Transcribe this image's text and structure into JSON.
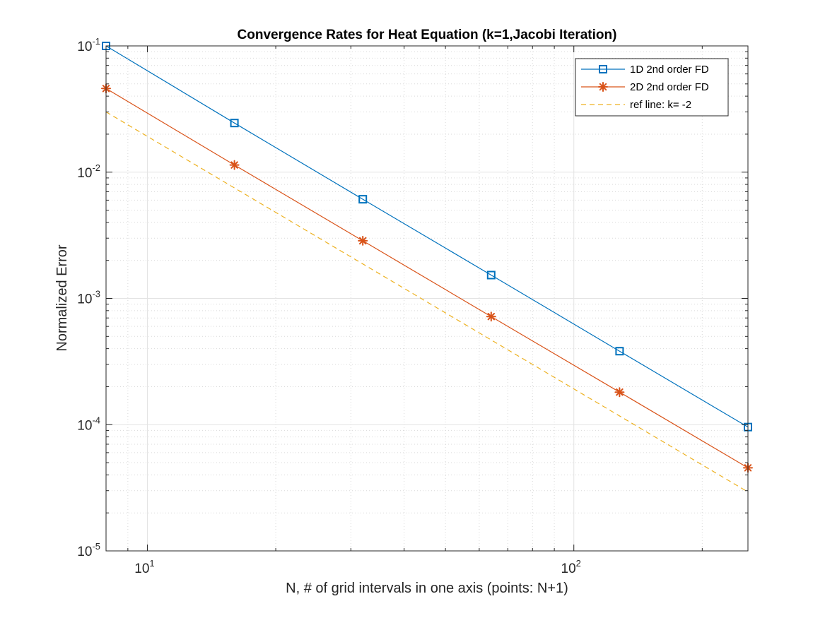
{
  "chart_data": {
    "type": "line",
    "title": "Convergence Rates for Heat Equation (k=1,Jacobi Iteration)",
    "xlabel": "N, # of grid intervals in one axis (points: N+1)",
    "ylabel": "Normalized Error",
    "xscale": "log",
    "yscale": "log",
    "xlim": [
      8,
      256
    ],
    "ylim": [
      1e-05,
      0.1
    ],
    "x_ticks": [
      {
        "value": 10,
        "base": "10",
        "exp": "1"
      },
      {
        "value": 100,
        "base": "10",
        "exp": "2"
      }
    ],
    "y_ticks": [
      {
        "value": 0.1,
        "base": "10",
        "exp": "-1"
      },
      {
        "value": 0.01,
        "base": "10",
        "exp": "-2"
      },
      {
        "value": 0.001,
        "base": "10",
        "exp": "-3"
      },
      {
        "value": 0.0001,
        "base": "10",
        "exp": "-4"
      },
      {
        "value": 1e-05,
        "base": "10",
        "exp": "-5"
      }
    ],
    "grid": true,
    "minor_grid": true,
    "legend_position": "top-right",
    "x": [
      8,
      16,
      32,
      64,
      128,
      256
    ],
    "series": [
      {
        "name": "1D 2nd order FD",
        "values": [
          0.1,
          0.0245,
          0.0061,
          0.00153,
          0.000382,
          9.57e-05
        ],
        "color": "#0072BD",
        "marker": "square",
        "dash": false
      },
      {
        "name": "2D 2nd order FD",
        "values": [
          0.046,
          0.0114,
          0.00286,
          0.000718,
          0.000181,
          4.55e-05
        ],
        "color": "#D95319",
        "marker": "asterisk",
        "dash": false
      },
      {
        "name": "ref line: k= -2",
        "values": [
          0.03,
          0.0075,
          0.001875,
          0.00046875,
          0.0001172,
          2.93e-05
        ],
        "color": "#EDB120",
        "marker": "none",
        "dash": true
      }
    ]
  }
}
